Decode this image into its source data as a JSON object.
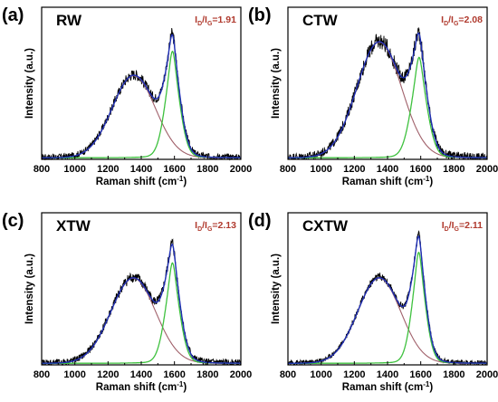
{
  "chart_data": [
    {
      "type": "line",
      "panel": "(a)",
      "sample": "RW",
      "ratio": {
        "prefix": "I",
        "d_sub": "D",
        "slash": "/I",
        "g_sub": "G",
        "value": "=1.91"
      },
      "xlabel": "Raman shift (cm",
      "xlabel_sup": "-1",
      "xlabel_end": ")",
      "ylabel": "Intensity (a.u.)",
      "xlim": [
        800,
        2000
      ],
      "xticks": [
        "800",
        "1000",
        "1200",
        "1400",
        "1600",
        "1800",
        "2000"
      ],
      "ylim": [
        0,
        1.0
      ],
      "d_peak": {
        "center": 1355,
        "width": 130,
        "height": 0.54
      },
      "g_peak": {
        "center": 1588,
        "width": 48,
        "height": 0.7
      },
      "noise": 0.035,
      "colors": {
        "raw": "#000000",
        "fit": "#1f2fb5",
        "d": "#a0606a",
        "g": "#3ec13e"
      }
    },
    {
      "type": "line",
      "panel": "(b)",
      "sample": "CTW",
      "ratio": {
        "prefix": "I",
        "d_sub": "D",
        "slash": "/I",
        "g_sub": "G",
        "value": "=2.08"
      },
      "xlabel": "Raman shift (cm",
      "xlabel_sup": "-1",
      "xlabel_end": ")",
      "ylabel": "Intensity (a.u.)",
      "xlim": [
        800,
        2000
      ],
      "xticks": [
        "800",
        "1000",
        "1200",
        "1400",
        "1600",
        "1800",
        "2000"
      ],
      "ylim": [
        0,
        1.0
      ],
      "d_peak": {
        "center": 1350,
        "width": 135,
        "height": 0.76
      },
      "g_peak": {
        "center": 1590,
        "width": 52,
        "height": 0.66
      },
      "noise": 0.045,
      "colors": {
        "raw": "#000000",
        "fit": "#1f2fb5",
        "d": "#a0606a",
        "g": "#3ec13e"
      }
    },
    {
      "type": "line",
      "panel": "(c)",
      "sample": "XTW",
      "ratio": {
        "prefix": "I",
        "d_sub": "D",
        "slash": "/I",
        "g_sub": "G",
        "value": "=2.13"
      },
      "xlabel": "Raman shift (cm",
      "xlabel_sup": "-1",
      "xlabel_end": ")",
      "ylabel": "Intensity (a.u.)",
      "xlim": [
        800,
        2000
      ],
      "xticks": [
        "800",
        "1000",
        "1200",
        "1400",
        "1600",
        "1800",
        "2000"
      ],
      "ylim": [
        0,
        1.0
      ],
      "d_peak": {
        "center": 1352,
        "width": 135,
        "height": 0.56
      },
      "g_peak": {
        "center": 1588,
        "width": 48,
        "height": 0.66
      },
      "noise": 0.035,
      "colors": {
        "raw": "#000000",
        "fit": "#1f2fb5",
        "d": "#a0606a",
        "g": "#3ec13e"
      }
    },
    {
      "type": "line",
      "panel": "(d)",
      "sample": "CXTW",
      "ratio": {
        "prefix": "I",
        "d_sub": "D",
        "slash": "/I",
        "g_sub": "G",
        "value": "=2.11"
      },
      "xlabel": "Raman shift (cm",
      "xlabel_sup": "-1",
      "xlabel_end": ")",
      "ylabel": "Intensity (a.u.)",
      "xlim": [
        800,
        2000
      ],
      "xticks": [
        "800",
        "1000",
        "1200",
        "1400",
        "1600",
        "1800",
        "2000"
      ],
      "ylim": [
        0,
        1.0
      ],
      "d_peak": {
        "center": 1350,
        "width": 130,
        "height": 0.56
      },
      "g_peak": {
        "center": 1588,
        "width": 45,
        "height": 0.73
      },
      "noise": 0.025,
      "colors": {
        "raw": "#000000",
        "fit": "#1f2fb5",
        "d": "#a0606a",
        "g": "#3ec13e"
      }
    }
  ]
}
